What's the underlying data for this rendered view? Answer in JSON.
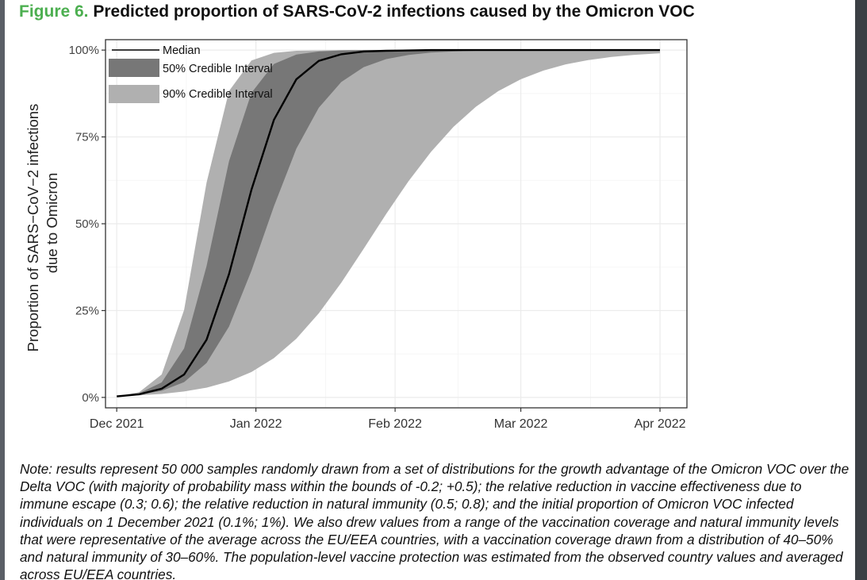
{
  "figure": {
    "number": "Figure 6.",
    "title": "Predicted proportion of SARS-CoV-2 infections caused by the Omicron VOC"
  },
  "note": "Note: results represent 50 000 samples randomly drawn from a set of distributions for the growth advantage of the Omicron VOC over the Delta VOC (with majority of probability mass within the bounds of -0.2; +0.5); the relative reduction in vaccine effectiveness due to immune escape (0.3; 0.6); the relative reduction in natural immunity (0.5; 0.8); and the initial proportion of Omicron VOC infected individuals on 1 December 2021 (0.1%; 1%). We also drew values from a range of the vaccination coverage and natural immunity levels that were representative of the average across the EU/EEA countries, with a vaccination coverage drawn from a distribution of 40–50% and natural immunity of 30–60%. The population-level vaccine protection was estimated from the observed country values and averaged across EU/EEA countries.",
  "colors": {
    "median": "#000000",
    "ci50": "#777777",
    "ci90": "#b0b0b0",
    "title_accent": "#4caf50"
  },
  "chart_data": {
    "type": "area",
    "ylabel_line1": "Proportion of SARS−CoV−2 infections",
    "ylabel_line2": "due to Omicron",
    "xlabel": "",
    "x_ticks": [
      {
        "label": "Dec 2021",
        "day": 0
      },
      {
        "label": "Jan 2022",
        "day": 31
      },
      {
        "label": "Feb 2022",
        "day": 62
      },
      {
        "label": "Mar 2022",
        "day": 90
      },
      {
        "label": "Apr 2022",
        "day": 121
      }
    ],
    "y_ticks": [
      {
        "label": "0%",
        "value": 0
      },
      {
        "label": "25%",
        "value": 25
      },
      {
        "label": "50%",
        "value": 50
      },
      {
        "label": "75%",
        "value": 75
      },
      {
        "label": "100%",
        "value": 100
      }
    ],
    "xlim": [
      -2.5,
      127
    ],
    "ylim": [
      -3,
      103
    ],
    "grid": true,
    "legend": {
      "position": "top-left",
      "entries": [
        {
          "key": "median",
          "label": "Median"
        },
        {
          "key": "ci50",
          "label": "50% Credible Interval"
        },
        {
          "key": "ci90",
          "label": "90% Credible Interval"
        }
      ]
    },
    "series": [
      {
        "name": "90% lower",
        "x": [
          0,
          5,
          10,
          15,
          20,
          25,
          30,
          35,
          40,
          45,
          50,
          55,
          60,
          65,
          70,
          75,
          80,
          85,
          90,
          95,
          100,
          105,
          110,
          115,
          121
        ],
        "values": [
          0.3,
          0.6,
          1.0,
          1.7,
          2.8,
          4.6,
          7.3,
          11.3,
          16.9,
          24.2,
          33.0,
          42.8,
          52.8,
          62.3,
          70.7,
          77.9,
          83.7,
          88.2,
          91.6,
          94.1,
          95.9,
          97.1,
          98.0,
          98.6,
          99.1
        ]
      },
      {
        "name": "50% lower",
        "x": [
          0,
          5,
          10,
          15,
          20,
          25,
          30,
          35,
          40,
          45,
          50,
          55,
          60,
          65,
          70,
          75,
          80,
          85,
          90,
          95,
          100,
          105,
          110,
          115,
          121
        ],
        "values": [
          0.3,
          0.8,
          1.9,
          4.4,
          9.9,
          20.4,
          36.5,
          55.0,
          71.6,
          83.4,
          90.8,
          95.1,
          97.4,
          98.6,
          99.3,
          99.6,
          99.8,
          99.9,
          100,
          100,
          100,
          100,
          100,
          100,
          100
        ]
      },
      {
        "name": "Median",
        "x": [
          0,
          5,
          10,
          15,
          20,
          25,
          30,
          35,
          40,
          45,
          50,
          55,
          60,
          65,
          70,
          75,
          80,
          85,
          90,
          95,
          100,
          105,
          110,
          115,
          121
        ],
        "values": [
          0.3,
          0.9,
          2.5,
          6.6,
          16.6,
          35.5,
          59.8,
          79.9,
          91.6,
          96.9,
          98.8,
          99.6,
          99.8,
          99.9,
          100,
          100,
          100,
          100,
          100,
          100,
          100,
          100,
          100,
          100,
          100
        ]
      },
      {
        "name": "50% upper",
        "x": [
          0,
          5,
          10,
          15,
          20,
          25,
          30,
          35,
          40,
          45,
          50,
          55,
          60,
          65,
          70,
          75,
          80,
          85,
          90,
          95,
          100,
          105,
          110,
          115,
          121
        ],
        "values": [
          0.3,
          1.2,
          4.3,
          14.1,
          37.8,
          68.0,
          87.7,
          96.0,
          98.7,
          99.6,
          99.9,
          100,
          100,
          100,
          100,
          100,
          100,
          100,
          100,
          100,
          100,
          100,
          100,
          100,
          100
        ]
      },
      {
        "name": "90% upper",
        "x": [
          0,
          5,
          10,
          15,
          20,
          25,
          30,
          35,
          40,
          45,
          50,
          55,
          60,
          65,
          70,
          75,
          80,
          85,
          90,
          95,
          100,
          105,
          110,
          115,
          121
        ],
        "values": [
          0.3,
          1.5,
          6.6,
          25.2,
          61.8,
          88.2,
          97.0,
          99.2,
          99.8,
          99.9,
          100,
          100,
          100,
          100,
          100,
          100,
          100,
          100,
          100,
          100,
          100,
          100,
          100,
          100,
          100
        ]
      }
    ]
  }
}
